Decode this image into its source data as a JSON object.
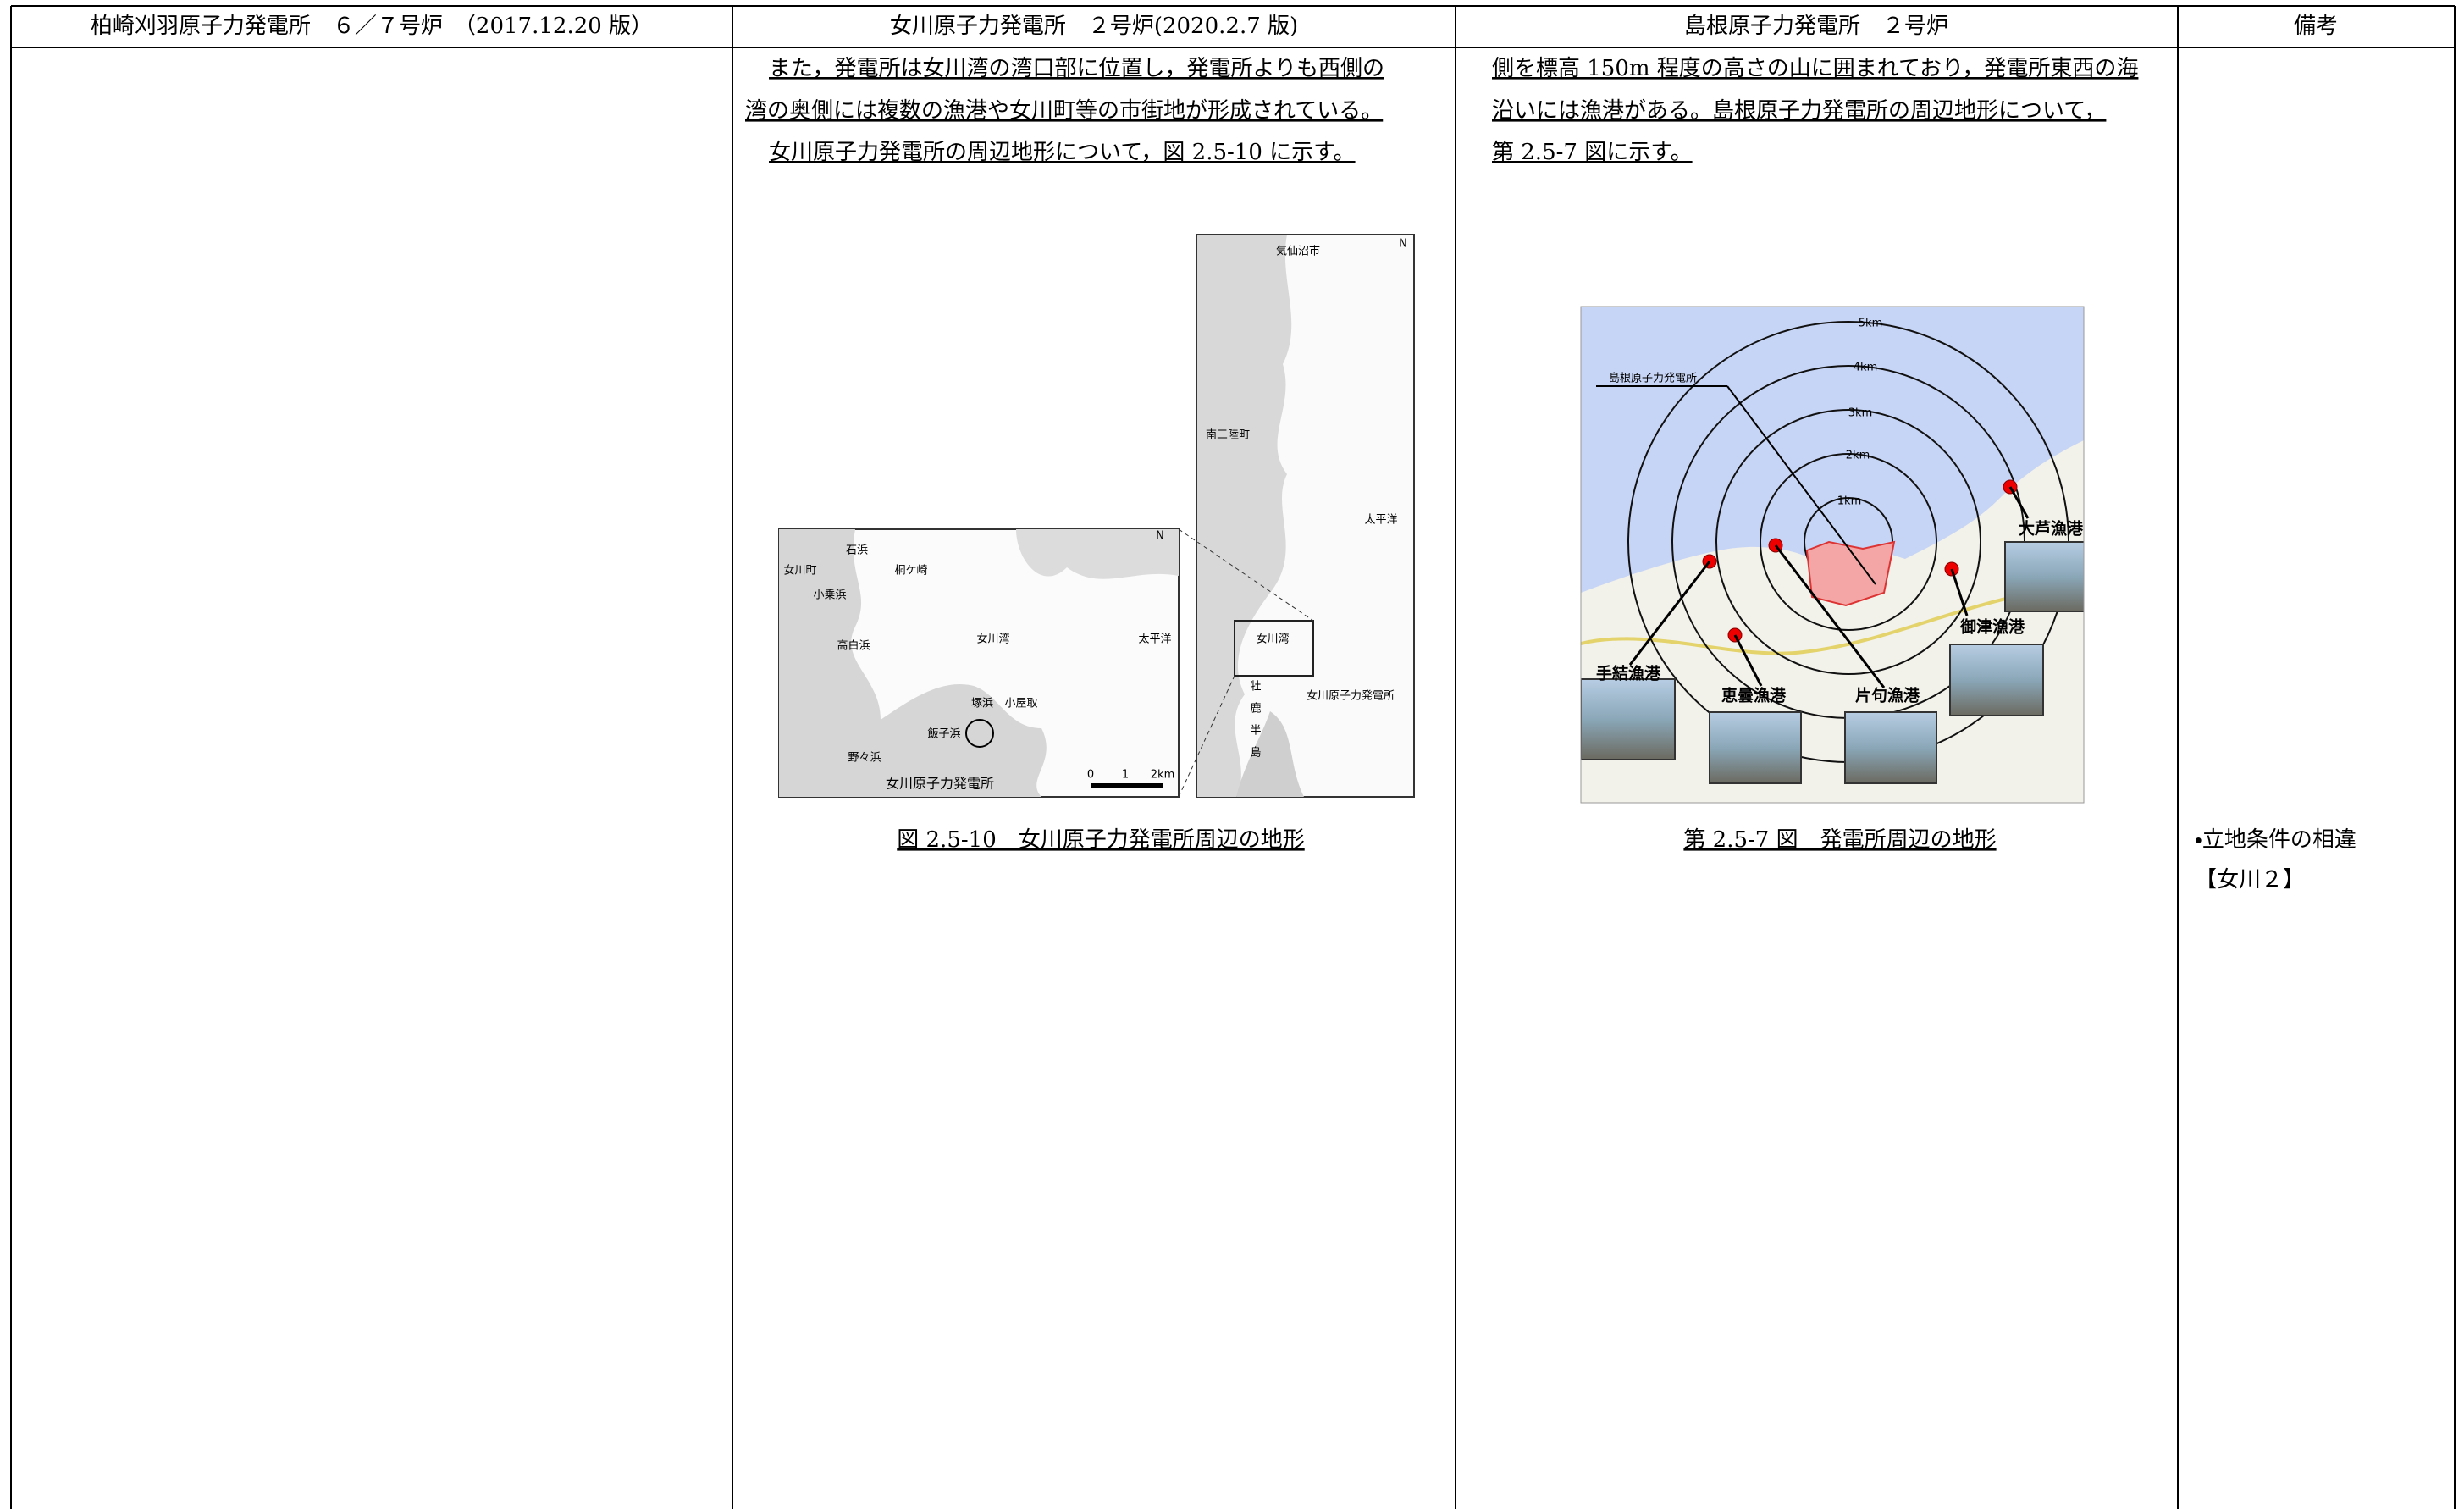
{
  "header": {
    "columns": [
      "柏崎刈羽原子力発電所　６／７号炉　（2017.12.20 版）",
      "女川原子力発電所　２号炉(2020.2.7 版)",
      "島根原子力発電所　２号炉",
      "備考"
    ]
  },
  "onagawa": {
    "lines": [
      "また，発電所は女川湾の湾口部に位置し，発電所よりも西側の",
      "湾の奥側には複数の漁港や女川町等の市街地が形成されている。",
      "女川原子力発電所の周辺地形について，図 2.5-10 に示す。"
    ],
    "figure": {
      "caption": "図 2.5-10　女川原子力発電所周辺の地形",
      "inset_labels": [
        "石浜",
        "女川町",
        "桐ケ崎",
        "小乗浜",
        "高白浜",
        "女川湾",
        "太平洋",
        "塚浜",
        "小屋取",
        "飯子浜",
        "野々浜",
        "女川原子力発電所",
        "N",
        "0",
        "1",
        "2km"
      ],
      "overview_labels": [
        "気仙沼市",
        "南三陸町",
        "太平洋",
        "女川湾",
        "女川原子力発電所",
        "牡",
        "鹿",
        "半",
        "島",
        "N"
      ]
    }
  },
  "shimane": {
    "lines": [
      "側を標高 150m 程度の高さの山に囲まれており，発電所東西の海",
      "沿いには漁港がある。島根原子力発電所の周辺地形について，",
      "第 2.5-7 図に示す。"
    ],
    "figure": {
      "caption": "第 2.5-7 図　発電所周辺の地形",
      "labels": [
        "島根原子力発電所",
        "5km",
        "4km",
        "3km",
        "2km",
        "1km",
        "大芦漁港",
        "御津漁港",
        "手結漁港",
        "恵曇漁港",
        "片句漁港"
      ]
    }
  },
  "remarks": {
    "lines": [
      "・立地条件の相違",
      "【女川２】"
    ]
  }
}
